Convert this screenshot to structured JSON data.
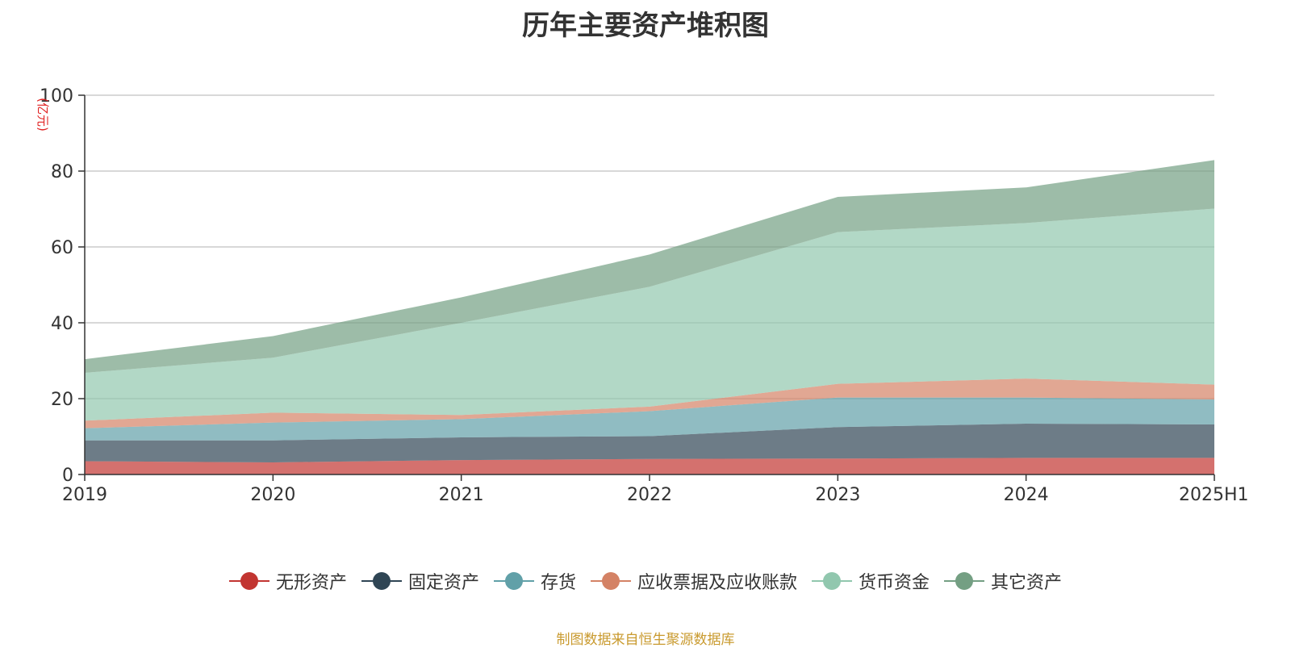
{
  "chart_data": {
    "type": "area",
    "stacked": true,
    "title": "历年主要资产堆积图",
    "ylabel": "(亿元)",
    "xlabel": "",
    "categories": [
      "2019",
      "2020",
      "2021",
      "2022",
      "2023",
      "2024",
      "2025H1"
    ],
    "ylim": [
      0,
      100
    ],
    "yticks": [
      0,
      20,
      40,
      60,
      80,
      100
    ],
    "grid": true,
    "legend_position": "bottom",
    "series": [
      {
        "name": "无形资产",
        "color": "#c23531",
        "values": [
          3.5,
          3.2,
          3.8,
          4.1,
          4.2,
          4.4,
          4.4
        ]
      },
      {
        "name": "固定资产",
        "color": "#2f4554",
        "values": [
          5.5,
          5.8,
          6.0,
          6.0,
          8.3,
          9.0,
          8.8
        ]
      },
      {
        "name": "存货",
        "color": "#61a0a8",
        "values": [
          3.2,
          4.7,
          4.8,
          6.6,
          7.8,
          6.9,
          6.6
        ]
      },
      {
        "name": "应收票据及应收账款",
        "color": "#d48265",
        "values": [
          2.0,
          2.6,
          1.1,
          1.2,
          3.6,
          5.0,
          3.9
        ]
      },
      {
        "name": "货币资金",
        "color": "#91c7ae",
        "values": [
          12.6,
          14.5,
          24.3,
          31.6,
          40.0,
          41.0,
          46.4
        ]
      },
      {
        "name": "其它资产",
        "color": "#749f83",
        "values": [
          3.6,
          5.7,
          6.7,
          8.5,
          9.3,
          9.4,
          12.8
        ]
      }
    ]
  },
  "source": "制图数据来自恒生聚源数据库"
}
